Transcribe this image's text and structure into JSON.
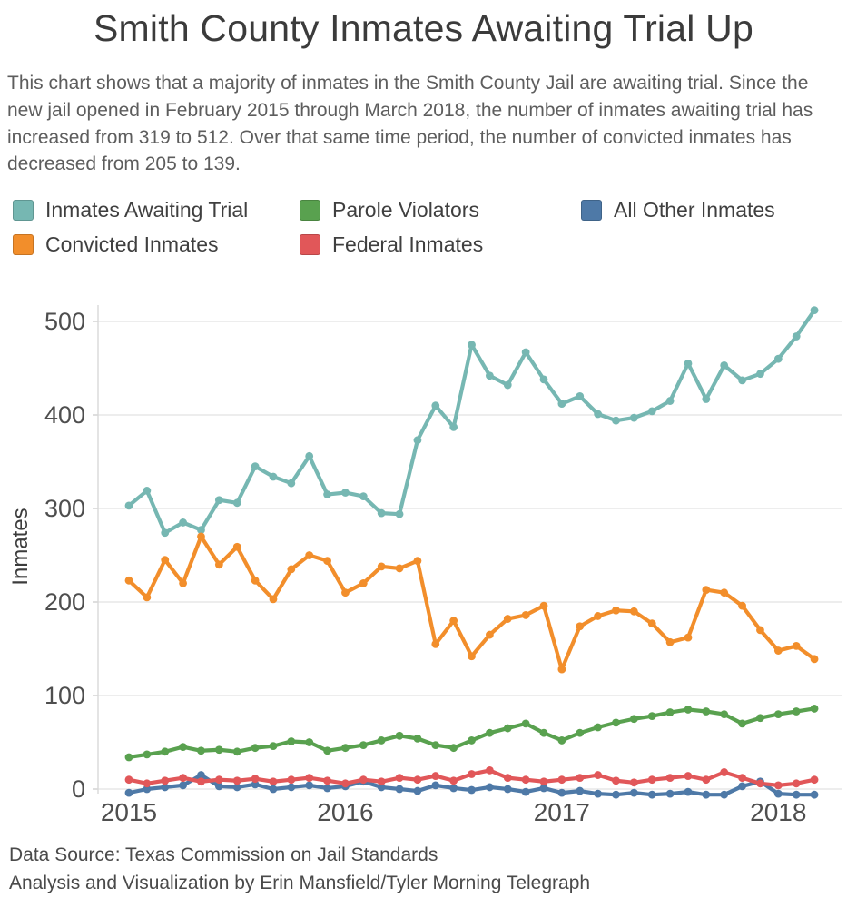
{
  "header": {
    "title": "Smith County Inmates Awaiting Trial Up",
    "subtitle": "This chart shows that a majority of inmates in the Smith County Jail are awaiting trial. Since the new jail opened in February 2015 through March 2018, the number of inmates awaiting trial has increased from 319 to 512. Over that same time period, the number of convicted inmates has decreased from 205 to 139."
  },
  "footer": {
    "lines": [
      "Data Source: Texas Commission on Jail Standards",
      "Analysis and Visualization by Erin Mansfield/Tyler Morning Telegraph"
    ]
  },
  "chart_data": {
    "type": "line",
    "title": "Smith County Inmates Awaiting Trial Up",
    "xlabel": "",
    "ylabel": "Inmates",
    "x_tick_labels": [
      "2015",
      "2016",
      "2017",
      "2018"
    ],
    "x_tick_month_index": [
      0,
      12,
      24,
      36
    ],
    "x_description": "Monthly values, January 2015 through March 2018 (39 points per series)",
    "y_ticks": [
      0,
      100,
      200,
      300,
      400,
      500
    ],
    "ylim": [
      -10,
      530
    ],
    "grid": "horizontal",
    "legend_position": "top",
    "marker": "circle",
    "series": [
      {
        "name": "Inmates Awaiting Trial",
        "color": "#76b7b2",
        "values": [
          303,
          319,
          274,
          285,
          277,
          309,
          306,
          345,
          334,
          327,
          356,
          315,
          317,
          313,
          295,
          294,
          373,
          410,
          387,
          475,
          442,
          432,
          467,
          438,
          412,
          420,
          401,
          394,
          397,
          404,
          415,
          455,
          417,
          453,
          437,
          444,
          460,
          484,
          512
        ]
      },
      {
        "name": "Convicted Inmates",
        "color": "#f28e2b",
        "values": [
          223,
          205,
          245,
          220,
          270,
          240,
          259,
          223,
          203,
          235,
          250,
          244,
          210,
          220,
          238,
          236,
          244,
          155,
          180,
          142,
          165,
          182,
          186,
          196,
          128,
          174,
          185,
          191,
          190,
          177,
          157,
          162,
          213,
          210,
          196,
          170,
          148,
          153,
          139
        ]
      },
      {
        "name": "Parole Violators",
        "color": "#59a14f",
        "values": [
          34,
          37,
          40,
          45,
          41,
          42,
          40,
          44,
          46,
          51,
          50,
          41,
          44,
          47,
          52,
          57,
          54,
          47,
          44,
          52,
          60,
          65,
          70,
          60,
          52,
          60,
          66,
          71,
          75,
          78,
          82,
          85,
          83,
          80,
          70,
          76,
          80,
          83,
          86
        ]
      },
      {
        "name": "Federal Inmates",
        "color": "#e15759",
        "values": [
          10,
          6,
          9,
          12,
          8,
          10,
          9,
          11,
          8,
          10,
          12,
          9,
          6,
          10,
          8,
          12,
          10,
          14,
          9,
          16,
          20,
          12,
          10,
          8,
          10,
          12,
          15,
          9,
          7,
          10,
          12,
          14,
          10,
          18,
          12,
          6,
          4,
          6,
          10
        ]
      },
      {
        "name": "All Other Inmates",
        "color": "#4e79a7",
        "values": [
          -4,
          0,
          2,
          4,
          15,
          3,
          2,
          5,
          0,
          2,
          4,
          1,
          3,
          8,
          2,
          0,
          -2,
          4,
          1,
          -1,
          2,
          0,
          -3,
          1,
          -4,
          -2,
          -5,
          -6,
          -4,
          -6,
          -5,
          -3,
          -6,
          -6,
          3,
          8,
          -5,
          -6,
          -6
        ]
      }
    ]
  }
}
